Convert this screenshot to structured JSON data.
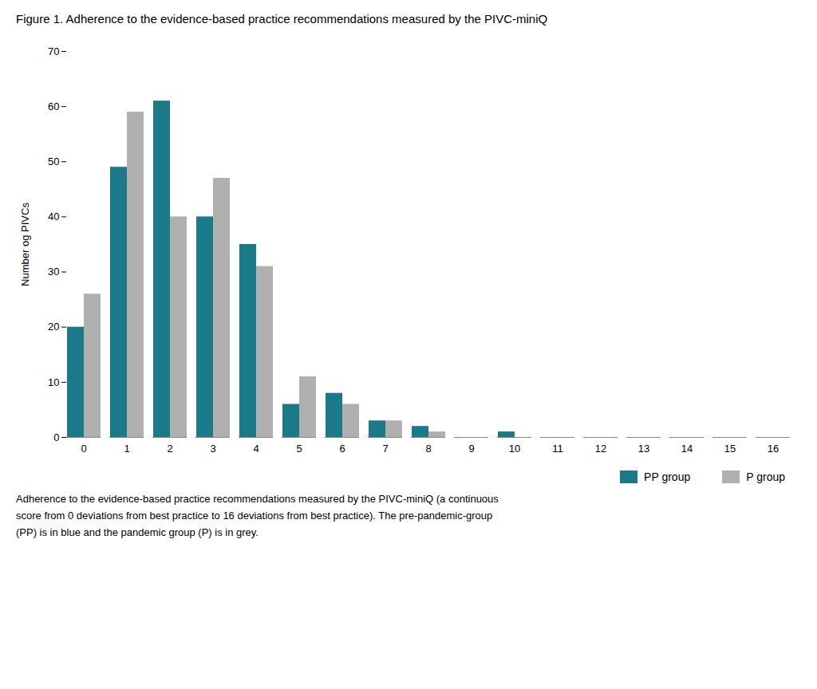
{
  "chart_data": {
    "type": "bar",
    "title": "Figure 1. Adherence to the evidence-based practice recommendations measured by the PIVC-miniQ",
    "caption": "Adherence to the evidence-based practice recommendations measured by the PIVC-miniQ (a continuous\nscore from 0 deviations from best practice to 16 deviations from best practice). The pre-pandemic-group\n(PP) is in blue and the pandemic group (P) is in grey.",
    "ylabel": "Number og PIVCs",
    "categories": [
      0,
      1,
      2,
      3,
      4,
      5,
      6,
      7,
      8,
      9,
      10,
      11,
      12,
      13,
      14,
      15,
      16
    ],
    "series": [
      {
        "name": "PP group",
        "color": "#1a7a8a",
        "values": [
          20,
          49,
          61,
          40,
          35,
          6,
          8,
          3,
          2,
          0,
          1,
          0,
          0,
          0,
          0,
          0,
          0
        ]
      },
      {
        "name": "P group",
        "color": "#b0b0b0",
        "values": [
          26,
          59,
          40,
          47,
          31,
          11,
          6,
          3,
          1,
          0,
          0,
          0,
          0,
          0,
          0,
          0,
          0
        ]
      }
    ],
    "ylim": [
      0,
      70
    ],
    "yticks": [
      0,
      10,
      20,
      30,
      40,
      50,
      60,
      70
    ],
    "grid": false,
    "legend": "lower right"
  }
}
